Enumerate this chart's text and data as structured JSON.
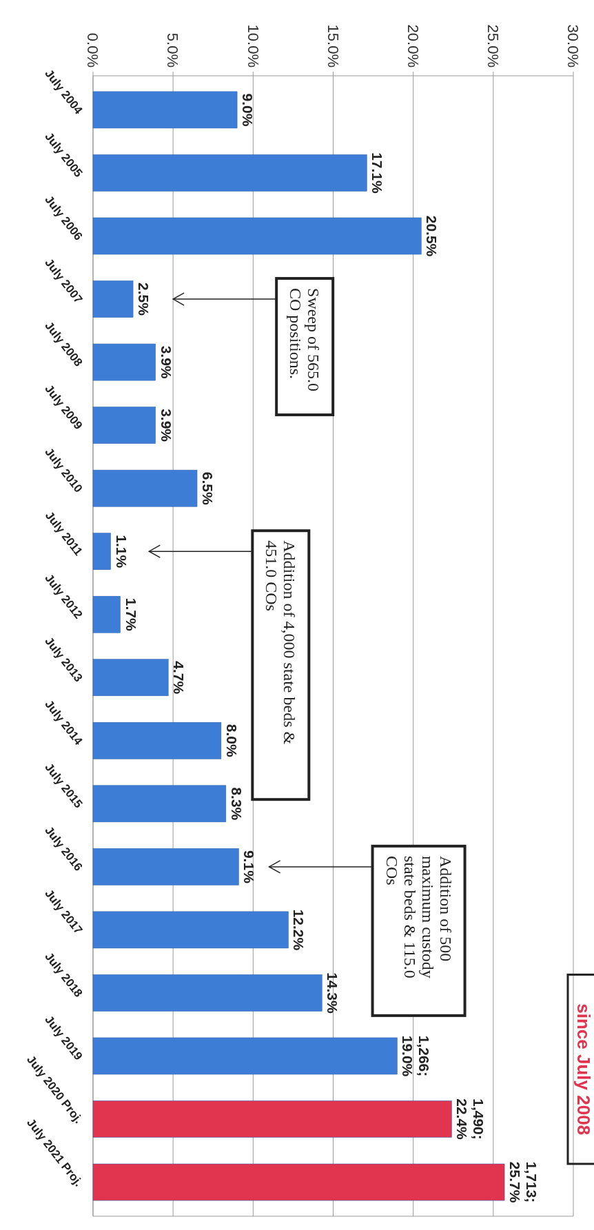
{
  "chart_data": {
    "type": "bar",
    "categories": [
      "July 2004",
      "July 2005",
      "July 2006",
      "July 2007",
      "July 2008",
      "July 2009",
      "July 2010",
      "July 2011",
      "July 2012",
      "July 2013",
      "July 2014",
      "July 2015",
      "July 2016",
      "July 2017",
      "July 2018",
      "July 2019",
      "July 2020 Proj.",
      "July 2021 Proj."
    ],
    "values": [
      9.0,
      17.1,
      20.5,
      2.5,
      3.9,
      3.9,
      6.5,
      1.1,
      1.7,
      4.7,
      8.0,
      8.3,
      9.1,
      12.2,
      14.3,
      19.0,
      22.4,
      25.7
    ],
    "colors": [
      "#3e7dd6",
      "#3e7dd6",
      "#3e7dd6",
      "#3e7dd6",
      "#3e7dd6",
      "#3e7dd6",
      "#3e7dd6",
      "#3e7dd6",
      "#3e7dd6",
      "#3e7dd6",
      "#3e7dd6",
      "#3e7dd6",
      "#3e7dd6",
      "#3e7dd6",
      "#3e7dd6",
      "#3e7dd6",
      "#e0344f",
      "#e0344f"
    ],
    "value_labels": [
      "9.0%",
      "17.1%",
      "20.5%",
      "2.5%",
      "3.9%",
      "3.9%",
      "6.5%",
      "1.1%",
      "1.7%",
      "4.7%",
      "8.0%",
      "8.3%",
      "9.1%",
      "12.2%",
      "14.3%",
      "1,266; 19.0%",
      "1,490; 22.4%",
      "1,713; 25.7%"
    ],
    "orientation": "horizontal",
    "xlim": [
      0,
      30
    ],
    "xticks": [
      {
        "value": 0,
        "label": "0.0%"
      },
      {
        "value": 5,
        "label": "5.0%"
      },
      {
        "value": 10,
        "label": "10.0%"
      },
      {
        "value": 15,
        "label": "15.0%"
      },
      {
        "value": 20,
        "label": "20.0%"
      },
      {
        "value": 25,
        "label": "25.0%"
      },
      {
        "value": 30,
        "label": "30.0%"
      }
    ],
    "grid": "x",
    "annotations": [
      "Sweep of 565.0\nCO positions.",
      "Addition of 4,000 state beds &\n451.0 COs",
      "Addition of 500\nmaximum custody\nstate beds & 115.0\nCOs",
      "since July 2008"
    ]
  }
}
